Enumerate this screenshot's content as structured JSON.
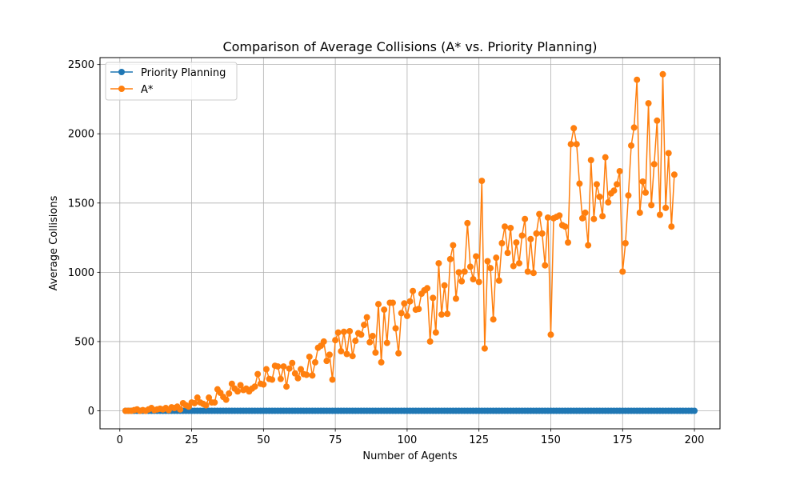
{
  "chart_data": {
    "type": "line",
    "title": "Comparison of Average Collisions (A* vs. Priority Planning)",
    "xlabel": "Number of Agents",
    "ylabel": "Average Collisions",
    "xlim": [
      -6.9,
      208.9
    ],
    "ylim": [
      -130,
      2550
    ],
    "xticks": [
      0,
      25,
      50,
      75,
      100,
      125,
      150,
      175,
      200
    ],
    "xtick_labels": [
      "0",
      "25",
      "50",
      "75",
      "100",
      "125",
      "150",
      "175",
      "200"
    ],
    "yticks": [
      0,
      500,
      1000,
      1500,
      2000,
      2500
    ],
    "ytick_labels": [
      "0",
      "500",
      "1000",
      "1500",
      "2000",
      "2500"
    ],
    "grid": true,
    "legend_position": "top-left",
    "series": [
      {
        "name": "Priority Planning",
        "color": "#1f77b4",
        "marker": "circle",
        "x_start": 2,
        "x_end": 200,
        "values_note_constant": 0,
        "values": []
      },
      {
        "name": "A*",
        "color": "#ff7f0e",
        "marker": "circle",
        "x_start": 2,
        "x_end": 200,
        "values": [
          0,
          0,
          0,
          5,
          10,
          0,
          5,
          0,
          10,
          20,
          5,
          10,
          15,
          10,
          20,
          5,
          25,
          20,
          30,
          10,
          55,
          40,
          30,
          60,
          55,
          95,
          60,
          50,
          40,
          95,
          60,
          60,
          155,
          130,
          100,
          80,
          125,
          195,
          160,
          140,
          185,
          150,
          160,
          140,
          160,
          175,
          265,
          195,
          190,
          300,
          230,
          225,
          325,
          320,
          230,
          320,
          175,
          305,
          345,
          270,
          235,
          300,
          265,
          260,
          390,
          255,
          350,
          455,
          470,
          500,
          360,
          405,
          225,
          510,
          565,
          430,
          570,
          410,
          575,
          395,
          505,
          560,
          550,
          620,
          675,
          495,
          540,
          420,
          770,
          350,
          730,
          490,
          780,
          780,
          595,
          415,
          705,
          775,
          685,
          790,
          865,
          730,
          735,
          845,
          870,
          885,
          500,
          815,
          565,
          1065,
          695,
          905,
          700,
          1095,
          1195,
          810,
          1000,
          935,
          1005,
          1355,
          1040,
          950,
          1115,
          930,
          1660,
          450,
          1080,
          1030,
          660,
          1105,
          940,
          1210,
          1330,
          1140,
          1320,
          1045,
          1215,
          1065,
          1265,
          1385,
          1005,
          1240,
          995,
          1280,
          1420,
          1280,
          1050,
          1395,
          550,
          1390,
          1400,
          1410,
          1340,
          1330,
          1215,
          1925,
          2040,
          1925,
          1640,
          1390,
          1430,
          1195,
          1810,
          1385,
          1635,
          1545,
          1405,
          1830,
          1505,
          1570,
          1590,
          1635,
          1730,
          1005,
          1210,
          1555,
          1915,
          2045,
          2390,
          1430,
          1655,
          1575,
          2220,
          1485,
          1780,
          2095,
          1415,
          2430,
          1465,
          1860,
          1330,
          1705
        ]
      }
    ]
  }
}
